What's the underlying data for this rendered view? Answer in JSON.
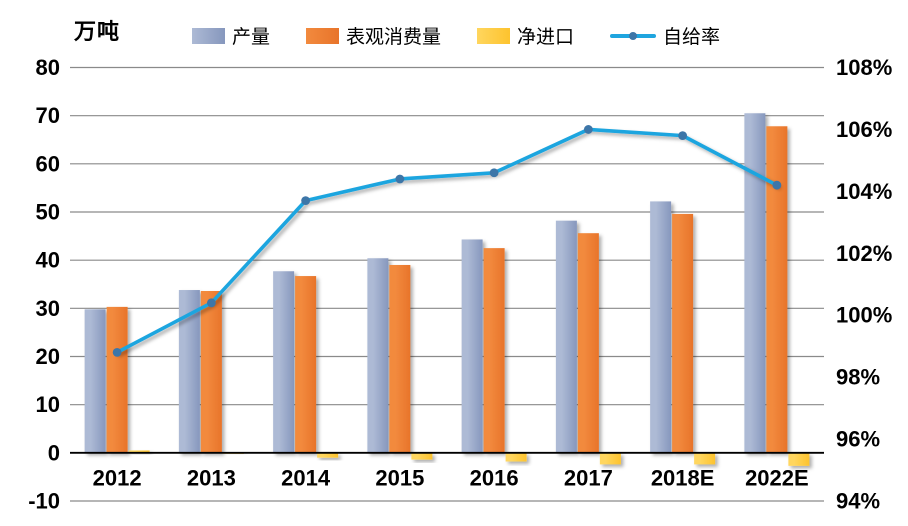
{
  "unit_label": "万吨",
  "chart_data": {
    "type": "bar+line combo, dual axis",
    "categories": [
      "2012",
      "2013",
      "2014",
      "2015",
      "2016",
      "2017",
      "2018E",
      "2022E"
    ],
    "series": [
      {
        "id": "production",
        "label": "产量",
        "type": "bar",
        "axis": "left",
        "values": [
          29.8,
          33.8,
          37.7,
          40.4,
          44.3,
          48.2,
          52.2,
          70.5
        ]
      },
      {
        "id": "consumption",
        "label": "表观消费量",
        "type": "bar",
        "axis": "left",
        "values": [
          30.3,
          33.6,
          36.7,
          39.0,
          42.5,
          45.6,
          49.6,
          67.8
        ]
      },
      {
        "id": "net-import",
        "label": "净进口",
        "type": "bar",
        "axis": "left",
        "values": [
          0.5,
          -0.2,
          -1.0,
          -1.4,
          -1.8,
          -2.4,
          -2.4,
          -2.7
        ]
      },
      {
        "id": "self-sufficiency",
        "label": "自给率",
        "type": "line",
        "axis": "right",
        "values": [
          98.8,
          100.4,
          103.7,
          104.4,
          104.6,
          106.0,
          105.8,
          104.2
        ]
      }
    ],
    "left_axis": {
      "title": "万吨",
      "min": -10,
      "max": 80,
      "step": 10,
      "tick_labels": [
        "80",
        "70",
        "60",
        "50",
        "40",
        "30",
        "20",
        "10",
        "0",
        "-10"
      ]
    },
    "right_axis": {
      "min": 94,
      "max": 108,
      "step": 2,
      "tick_labels": [
        "108%",
        "106%",
        "104%",
        "102%",
        "100%",
        "98%",
        "96%",
        "94%"
      ]
    },
    "grid": "horizontal gridlines on, zero line emphasized black",
    "legend_position": "top",
    "colors": {
      "production": "#8697BD",
      "production_light": "#ADBAD5",
      "consumption": "#E8742A",
      "consumption_light": "#F28A3E",
      "net_import": "#FDC32E",
      "net_import_light": "#FFD65E",
      "line": "#1FA5DF",
      "marker": "#3D76A8",
      "grid": "#8A8A8A",
      "axis": "#000000",
      "text": "#000000"
    }
  }
}
